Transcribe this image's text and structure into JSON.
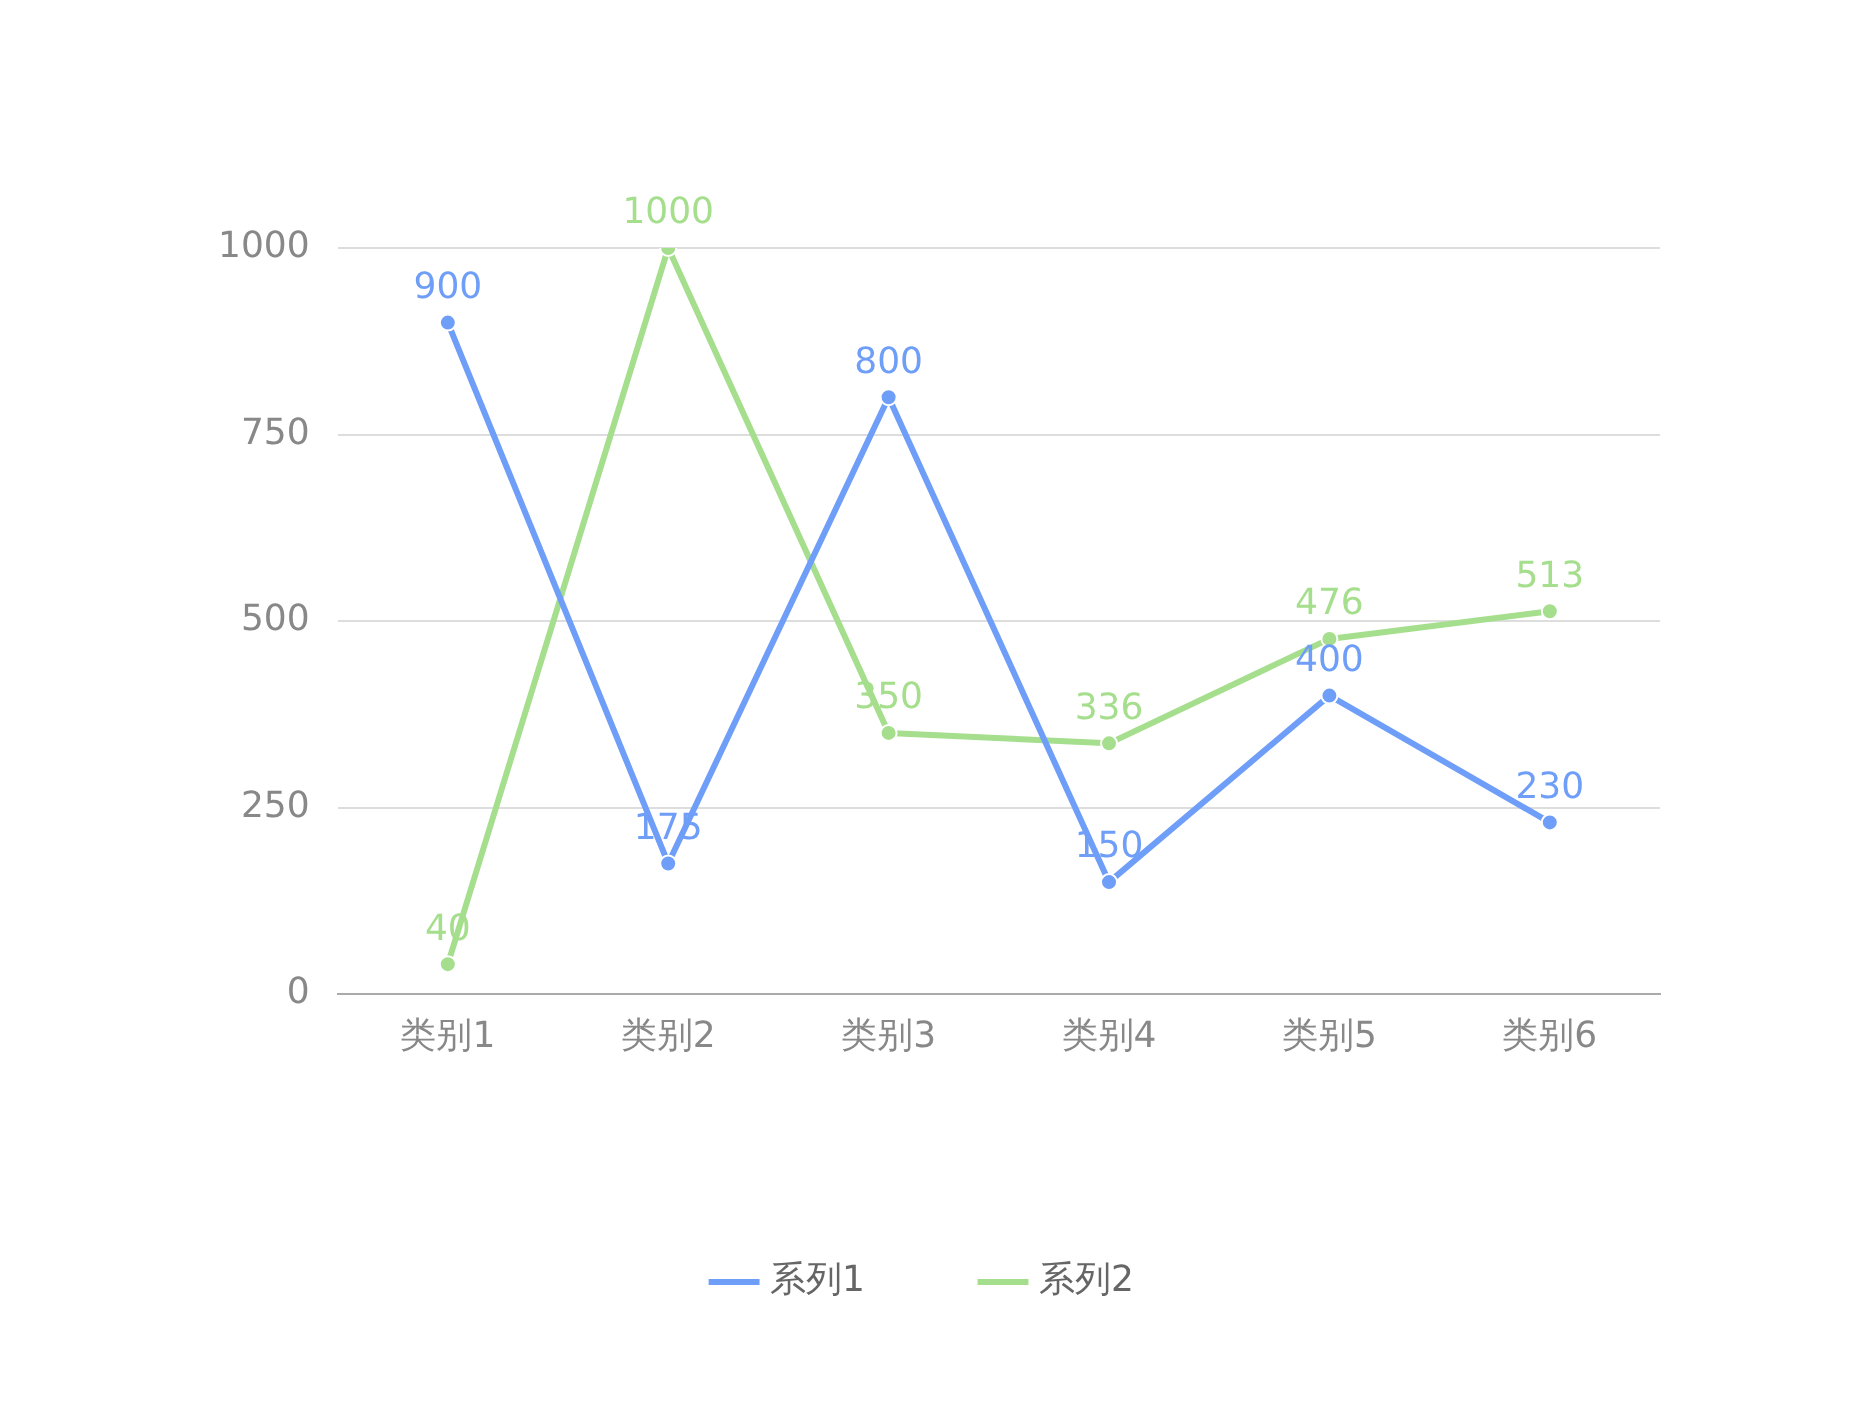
{
  "chart_data": {
    "type": "line",
    "categories": [
      "类别1",
      "类别2",
      "类别3",
      "类别4",
      "类别5",
      "类别6"
    ],
    "series": [
      {
        "name": "系列1",
        "color": "#6f9ef8",
        "values": [
          900,
          175,
          800,
          150,
          400,
          230
        ]
      },
      {
        "name": "系列2",
        "color": "#a5de8c",
        "values": [
          40,
          1000,
          350,
          336,
          476,
          513
        ]
      }
    ],
    "ylim": [
      0,
      1000
    ],
    "yticks": [
      0,
      250,
      500,
      750,
      1000
    ],
    "grid": "y",
    "legend": "bottom",
    "marker": "circle",
    "data_labels": true
  }
}
